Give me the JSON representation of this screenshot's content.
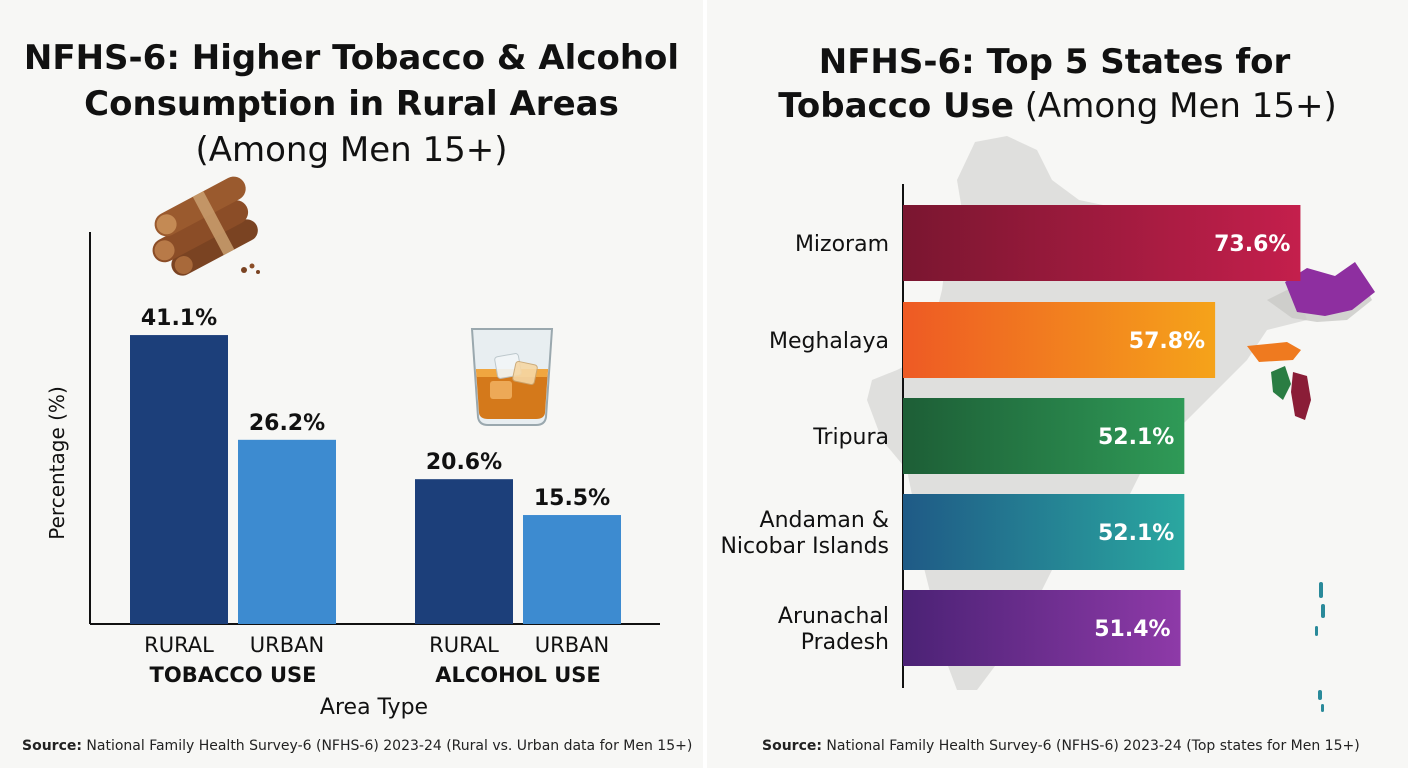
{
  "left": {
    "title_line1": "NFHS-6: Higher Tobacco & Alcohol",
    "title_line2": "Consumption in Rural Areas",
    "subtitle": "(Among Men 15+)",
    "source_label": "Source:",
    "source_text": "National Family Health Survey-6 (NFHS-6) 2023-24 (Rural vs. Urban data for Men 15+)"
  },
  "right": {
    "title_line1": "NFHS-6: Top 5 States for",
    "title_line2_bold": "Tobacco Use",
    "title_line2_rest": "(Among Men 15+)",
    "source_label": "Source:",
    "source_text": "National Family Health Survey-6 (NFHS-6) 2023-24 (Top states for Men 15+)"
  },
  "chart_data": [
    {
      "type": "bar",
      "title": "NFHS-6: Higher Tobacco & Alcohol Consumption in Rural Areas (Among Men 15+)",
      "xlabel": "Area Type",
      "ylabel": "Percentage (%)",
      "ylim": [
        0,
        50
      ],
      "groups": [
        {
          "label": "TOBACCO USE",
          "icon": "cigar-icon",
          "bars": [
            {
              "category": "RURAL",
              "value": 41.1,
              "label": "41.1%",
              "color": "#1c3f7a"
            },
            {
              "category": "URBAN",
              "value": 26.2,
              "label": "26.2%",
              "color": "#3d8bd0"
            }
          ]
        },
        {
          "label": "ALCOHOL USE",
          "icon": "whiskey-glass-icon",
          "bars": [
            {
              "category": "RURAL",
              "value": 20.6,
              "label": "20.6%",
              "color": "#1c3f7a"
            },
            {
              "category": "URBAN",
              "value": 15.5,
              "label": "15.5%",
              "color": "#3d8bd0"
            }
          ]
        }
      ]
    },
    {
      "type": "bar",
      "orientation": "horizontal",
      "title": "NFHS-6: Top 5 States for Tobacco Use (Among Men 15+)",
      "background_icon": "india-map-icon",
      "xlim": [
        0,
        80
      ],
      "bars": [
        {
          "lines": [
            "Mizoram"
          ],
          "value": 73.6,
          "label": "73.6%",
          "color_from": "#7a1630",
          "color_to": "#c41f4c"
        },
        {
          "lines": [
            "Meghalaya"
          ],
          "value": 57.8,
          "label": "57.8%",
          "color_from": "#ee5a24",
          "color_to": "#f5a31a"
        },
        {
          "lines": [
            "Tripura"
          ],
          "value": 52.1,
          "label": "52.1%",
          "color_from": "#1d5e36",
          "color_to": "#2f9a57"
        },
        {
          "lines": [
            "Andaman &",
            "Nicobar Islands"
          ],
          "value": 52.1,
          "label": "52.1%",
          "color_from": "#1f5a86",
          "color_to": "#2aa7a0"
        },
        {
          "lines": [
            "Arunachal",
            "Pradesh"
          ],
          "value": 51.4,
          "label": "51.4%",
          "color_from": "#4b2275",
          "color_to": "#8e3aa8"
        }
      ]
    }
  ]
}
